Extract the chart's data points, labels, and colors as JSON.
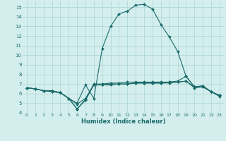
{
  "xlabel": "Humidex (Indice chaleur)",
  "bg_color": "#d4eeee",
  "grid_color": "#aad4d4",
  "line_color": "#1a6b6b",
  "markersize": 2,
  "linewidth": 0.8,
  "xlim": [
    -0.5,
    23.5
  ],
  "ylim": [
    4,
    15.6
  ],
  "yticks": [
    4,
    5,
    6,
    7,
    8,
    9,
    10,
    11,
    12,
    13,
    14,
    15
  ],
  "xticks": [
    0,
    1,
    2,
    3,
    4,
    5,
    6,
    7,
    8,
    9,
    10,
    11,
    12,
    13,
    14,
    15,
    16,
    17,
    18,
    19,
    20,
    21,
    22,
    23
  ],
  "series": [
    {
      "x": [
        0,
        1,
        2,
        3,
        4,
        5,
        6,
        7,
        8,
        9,
        10,
        11,
        12,
        13,
        14,
        15,
        16,
        17,
        18,
        19,
        20,
        21,
        22,
        23
      ],
      "y": [
        6.6,
        6.5,
        6.3,
        6.3,
        6.1,
        5.5,
        5.0,
        6.9,
        5.5,
        10.7,
        13.0,
        14.3,
        14.6,
        15.2,
        15.3,
        14.8,
        13.2,
        11.9,
        10.4,
        7.8,
        6.7,
        6.8,
        6.2,
        5.8
      ]
    },
    {
      "x": [
        0,
        1,
        2,
        3,
        4,
        5,
        6,
        7,
        8,
        9,
        10,
        11,
        12,
        13,
        14,
        15,
        16,
        17,
        18,
        19,
        20,
        21,
        22,
        23
      ],
      "y": [
        6.6,
        6.5,
        6.3,
        6.2,
        6.1,
        5.5,
        4.4,
        5.4,
        7.0,
        7.0,
        7.1,
        7.1,
        7.2,
        7.2,
        7.2,
        7.2,
        7.2,
        7.2,
        7.3,
        7.8,
        6.7,
        6.8,
        6.2,
        5.8
      ]
    },
    {
      "x": [
        0,
        1,
        2,
        3,
        4,
        5,
        6,
        7,
        8,
        9,
        10,
        11,
        12,
        13,
        14,
        15,
        16,
        17,
        18,
        19,
        20,
        21,
        22,
        23
      ],
      "y": [
        6.6,
        6.5,
        6.3,
        6.3,
        6.1,
        5.5,
        4.9,
        5.5,
        6.9,
        6.9,
        7.0,
        7.0,
        7.0,
        7.1,
        7.1,
        7.1,
        7.1,
        7.2,
        7.2,
        7.3,
        6.7,
        6.7,
        6.2,
        5.8
      ]
    },
    {
      "x": [
        0,
        1,
        2,
        3,
        4,
        5,
        6,
        7,
        8,
        9,
        10,
        11,
        12,
        13,
        14,
        15,
        16,
        17,
        18,
        19,
        20,
        21,
        22,
        23
      ],
      "y": [
        6.6,
        6.5,
        6.3,
        6.2,
        6.1,
        5.5,
        4.4,
        5.3,
        6.9,
        6.9,
        6.9,
        7.0,
        7.0,
        7.1,
        7.1,
        7.1,
        7.1,
        7.1,
        7.2,
        7.3,
        6.6,
        6.7,
        6.2,
        5.7
      ]
    }
  ]
}
